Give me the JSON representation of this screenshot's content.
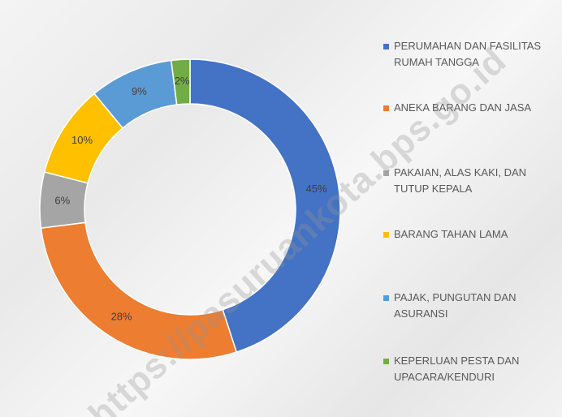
{
  "chart_data": {
    "type": "donut",
    "categories": [
      "PERUMAHAN  DAN FASILITAS RUMAH TANGGA",
      "ANEKA BARANG DAN JASA",
      "PAKAIAN, ALAS KAKI, DAN TUTUP KEPALA",
      "BARANG TAHAN LAMA",
      "PAJAK, PUNGUTAN DAN ASURANSI",
      "KEPERLUAN PESTA DAN UPACARA/KENDURI"
    ],
    "values": [
      45,
      28,
      6,
      10,
      9,
      2
    ],
    "value_labels": [
      "45%",
      "28%",
      "6%",
      "10%",
      "9%",
      "2%"
    ],
    "colors": [
      "#4472c4",
      "#ed7d31",
      "#a5a5a5",
      "#ffc000",
      "#5b9bd5",
      "#70ad47"
    ],
    "legend": "right"
  },
  "watermark": "https://pasuruankota.bps.go.id"
}
